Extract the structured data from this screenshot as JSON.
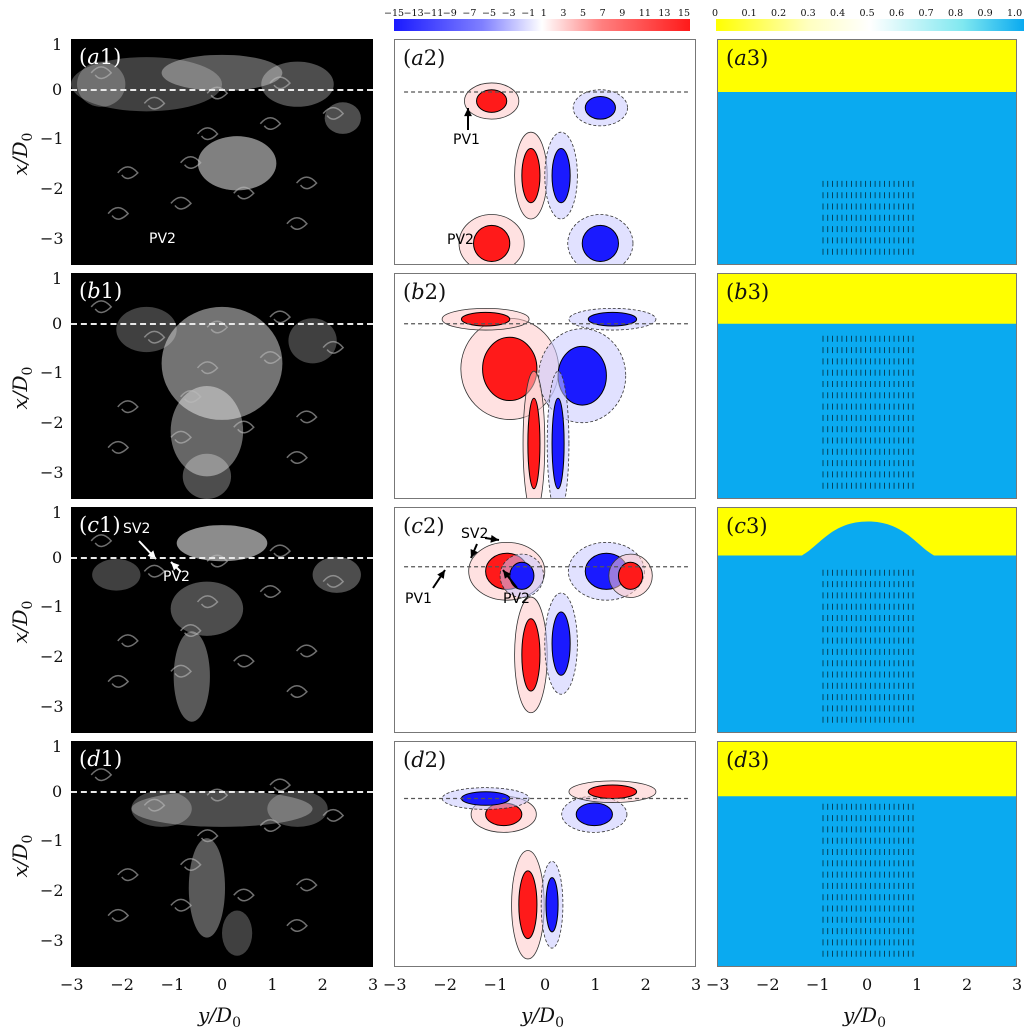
{
  "figure": {
    "y_axis_label": "x/D",
    "y_axis_subscript": "0",
    "x_axis_label": "y/D",
    "x_axis_subscript": "0",
    "y_ticks": [
      "1",
      "0",
      "−1",
      "−2",
      "−3"
    ],
    "x_ticks": [
      "−3",
      "−2",
      "−1",
      "0",
      "1",
      "2",
      "3"
    ]
  },
  "colorbars": {
    "vorticity_ticks": [
      "−15",
      "−13",
      "−11",
      "−9",
      "−7",
      "−5",
      "−3",
      "−1",
      "1",
      "3",
      "5",
      "7",
      "9",
      "11",
      "13",
      "15"
    ],
    "volume_fraction_ticks": [
      "0",
      "0.1",
      "0.2",
      "0.3",
      "0.4",
      "0.5",
      "0.6",
      "0.7",
      "0.8",
      "0.9",
      "1.0"
    ],
    "colors": {
      "negative": "#1a1aff",
      "positive": "#ff1a1a",
      "air": "#ffff00",
      "water": "#0aaaf0"
    }
  },
  "rows": [
    {
      "photo": {
        "prefix": "(",
        "letter": "a",
        "num": "1",
        "suffix": ")",
        "notes": [
          "PV2"
        ]
      },
      "vort": {
        "prefix": "(",
        "letter": "a",
        "num": "2",
        "suffix": ")",
        "notes": [
          "PV1",
          "PV2"
        ]
      },
      "vof": {
        "prefix": "(",
        "letter": "a",
        "num": "3",
        "suffix": ")"
      }
    },
    {
      "photo": {
        "prefix": "(",
        "letter": "b",
        "num": "1",
        "suffix": ")",
        "notes": []
      },
      "vort": {
        "prefix": "(",
        "letter": "b",
        "num": "2",
        "suffix": ")",
        "notes": []
      },
      "vof": {
        "prefix": "(",
        "letter": "b",
        "num": "3",
        "suffix": ")"
      }
    },
    {
      "photo": {
        "prefix": "(",
        "letter": "c",
        "num": "1",
        "suffix": ")",
        "notes": [
          "SV2",
          "PV2"
        ]
      },
      "vort": {
        "prefix": "(",
        "letter": "c",
        "num": "2",
        "suffix": ")",
        "notes": [
          "SV2",
          "PV1",
          "PV2"
        ]
      },
      "vof": {
        "prefix": "(",
        "letter": "c",
        "num": "3",
        "suffix": ")"
      }
    },
    {
      "photo": {
        "prefix": "(",
        "letter": "d",
        "num": "1",
        "suffix": ")",
        "notes": []
      },
      "vort": {
        "prefix": "(",
        "letter": "d",
        "num": "2",
        "suffix": ")",
        "notes": []
      },
      "vof": {
        "prefix": "(",
        "letter": "d",
        "num": "3",
        "suffix": ")"
      }
    }
  ]
}
